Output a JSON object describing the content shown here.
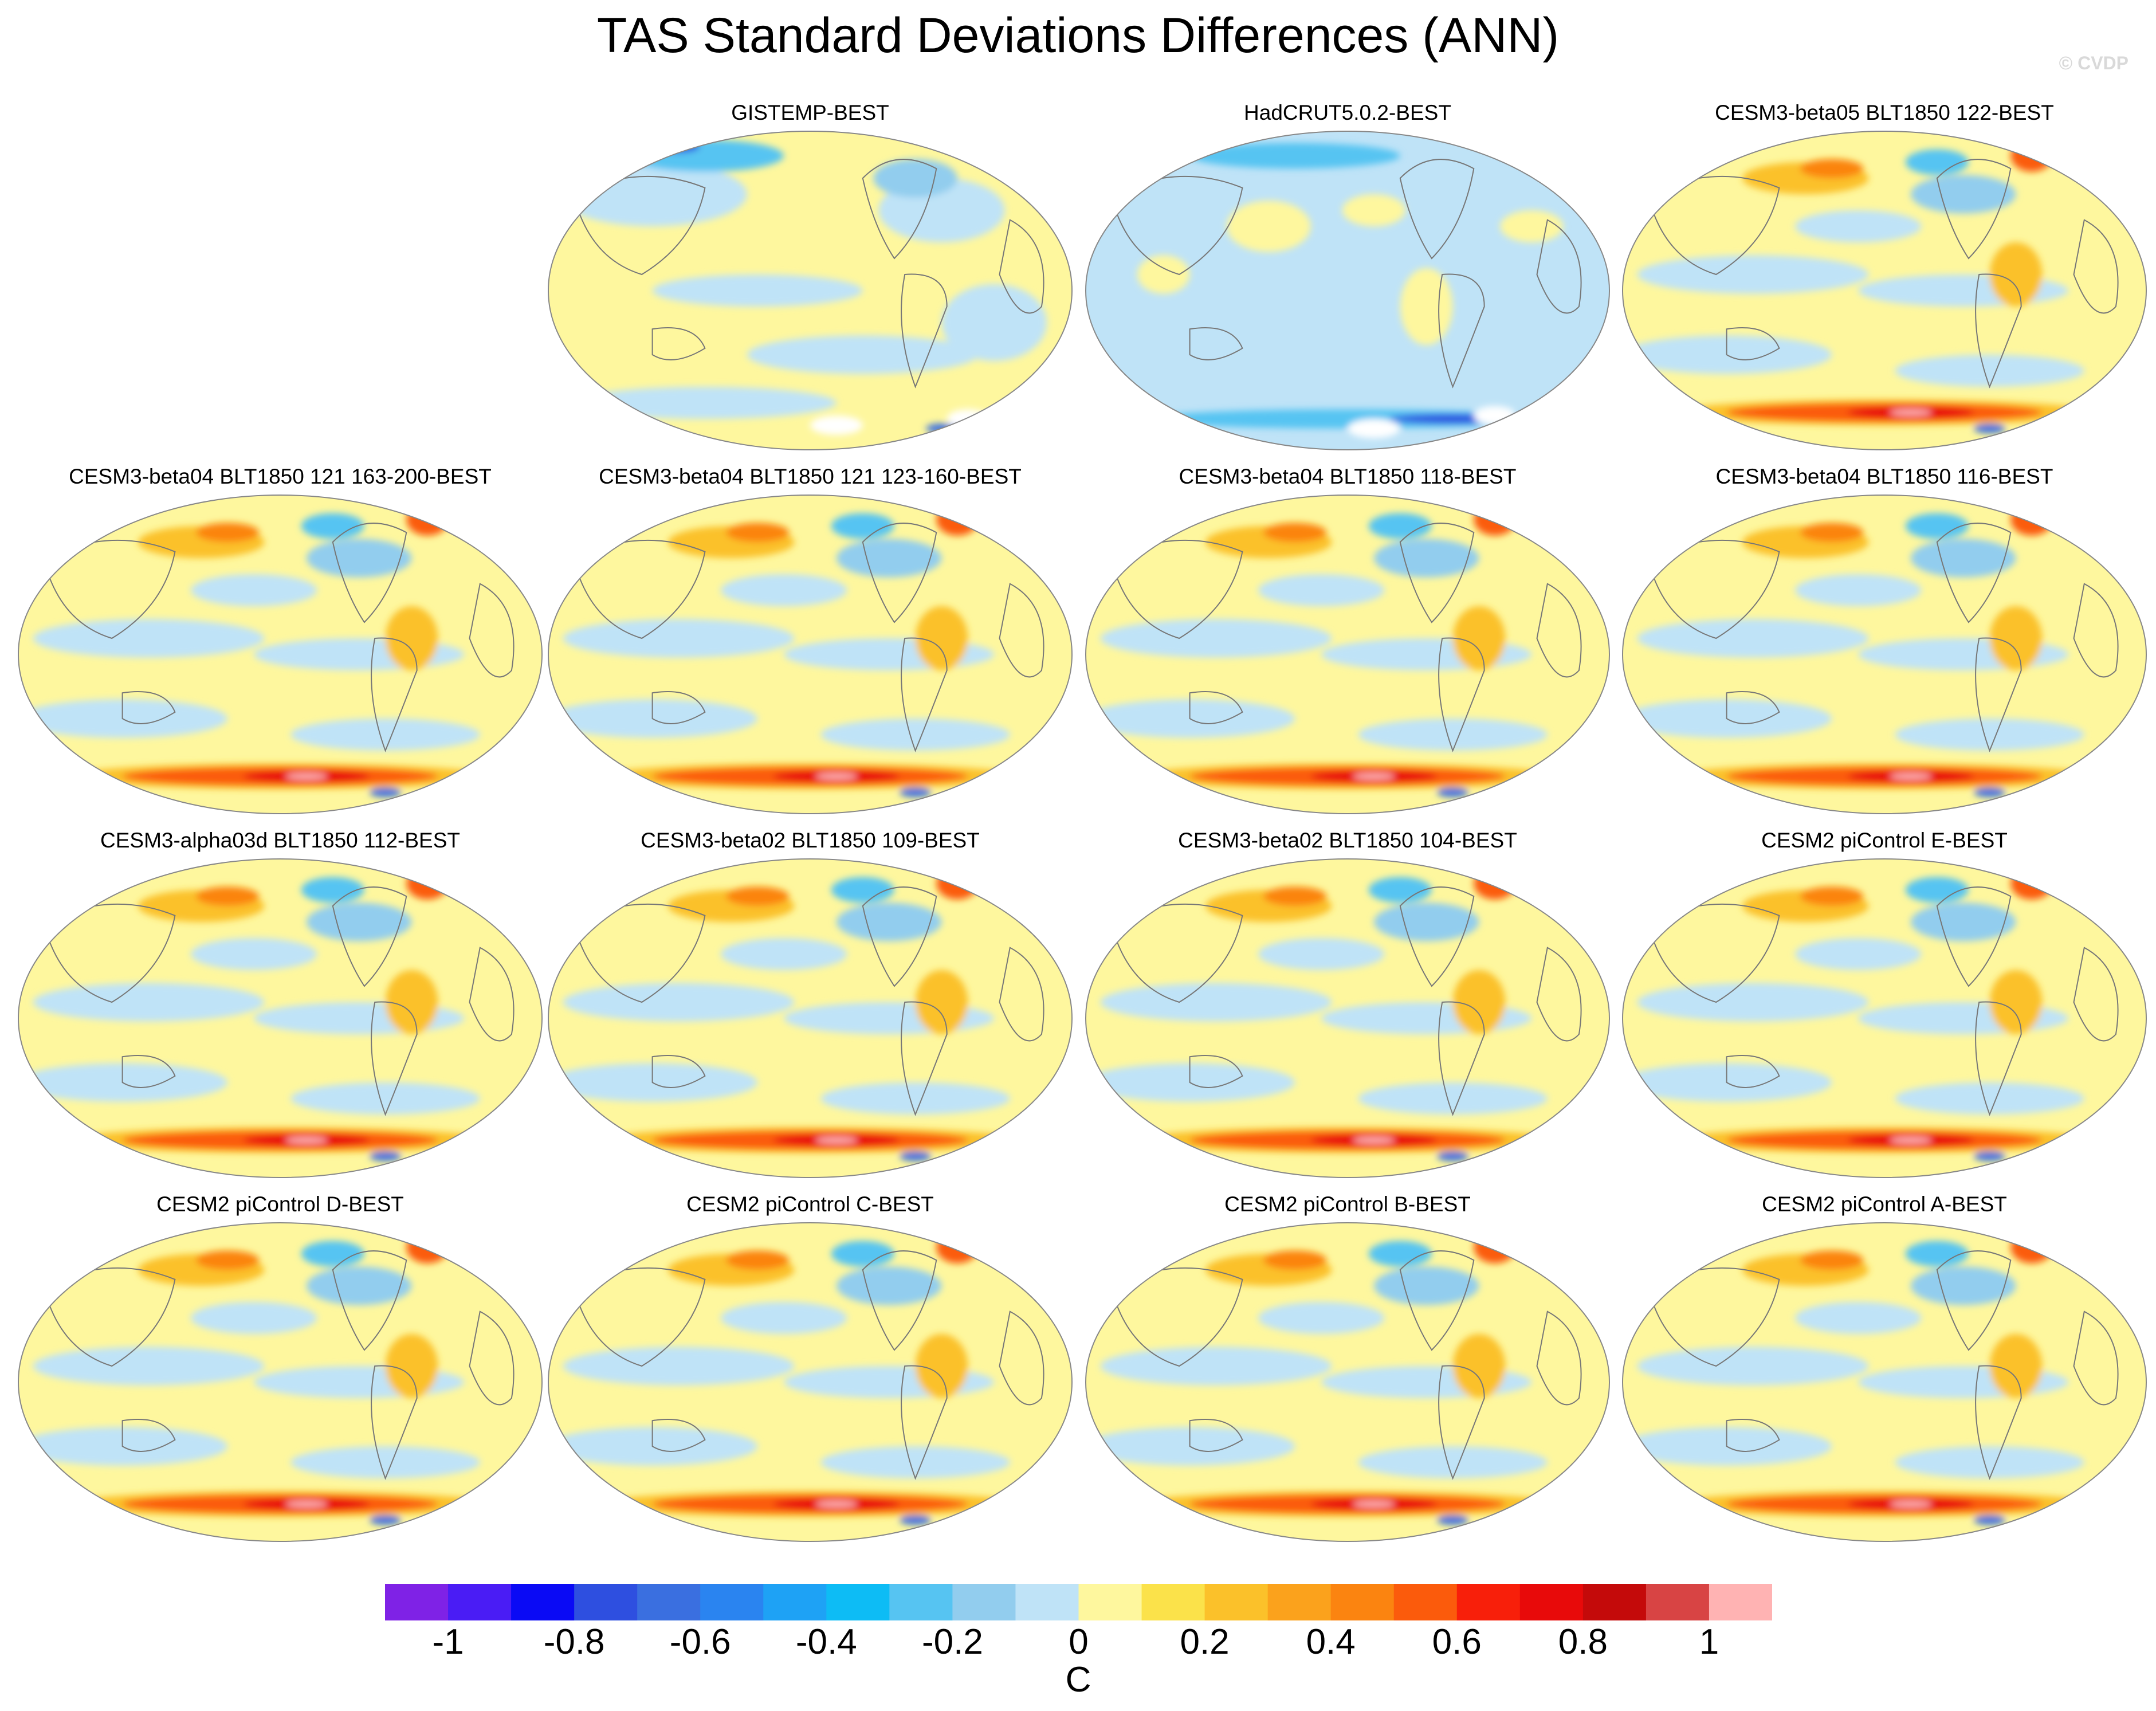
{
  "title": "TAS Standard Deviations Differences (ANN)",
  "watermark": "© CVDP",
  "panels": [
    {
      "title": "GISTEMP-BEST",
      "pattern": "obs1"
    },
    {
      "title": "HadCRUT5.0.2-BEST",
      "pattern": "obs2"
    },
    {
      "title": "CESM3-beta05 BLT1850 122-BEST",
      "pattern": "model"
    },
    {
      "title": "CESM3-beta04 BLT1850 121 163-200-BEST",
      "pattern": "model"
    },
    {
      "title": "CESM3-beta04 BLT1850 121 123-160-BEST",
      "pattern": "model"
    },
    {
      "title": "CESM3-beta04 BLT1850 118-BEST",
      "pattern": "model"
    },
    {
      "title": "CESM3-beta04 BLT1850 116-BEST",
      "pattern": "model"
    },
    {
      "title": "CESM3-alpha03d BLT1850 112-BEST",
      "pattern": "model"
    },
    {
      "title": "CESM3-beta02 BLT1850 109-BEST",
      "pattern": "model"
    },
    {
      "title": "CESM3-beta02 BLT1850 104-BEST",
      "pattern": "model"
    },
    {
      "title": "CESM2 piControl E-BEST",
      "pattern": "model"
    },
    {
      "title": "CESM2 piControl D-BEST",
      "pattern": "model"
    },
    {
      "title": "CESM2 piControl C-BEST",
      "pattern": "model"
    },
    {
      "title": "CESM2 piControl B-BEST",
      "pattern": "model"
    },
    {
      "title": "CESM2 piControl A-BEST",
      "pattern": "model"
    }
  ],
  "colorbar": {
    "colors": [
      "#7f22e6",
      "#4a1cf5",
      "#0a0af5",
      "#2e4fe0",
      "#3a6fe0",
      "#2a84f0",
      "#1ea2f5",
      "#0dbcf5",
      "#56c4f2",
      "#92cdee",
      "#bfe3f7",
      "#fef79e",
      "#fbe24a",
      "#fbc12a",
      "#fba21c",
      "#fb8410",
      "#fb5b0c",
      "#f81f0a",
      "#e80a0a",
      "#c40a0a",
      "#d84444",
      "#ffb3b3"
    ],
    "labels": [
      "-1",
      "-0.8",
      "-0.6",
      "-0.4",
      "-0.2",
      "0",
      "0.2",
      "0.4",
      "0.6",
      "0.8",
      "1"
    ],
    "units": "C"
  }
}
